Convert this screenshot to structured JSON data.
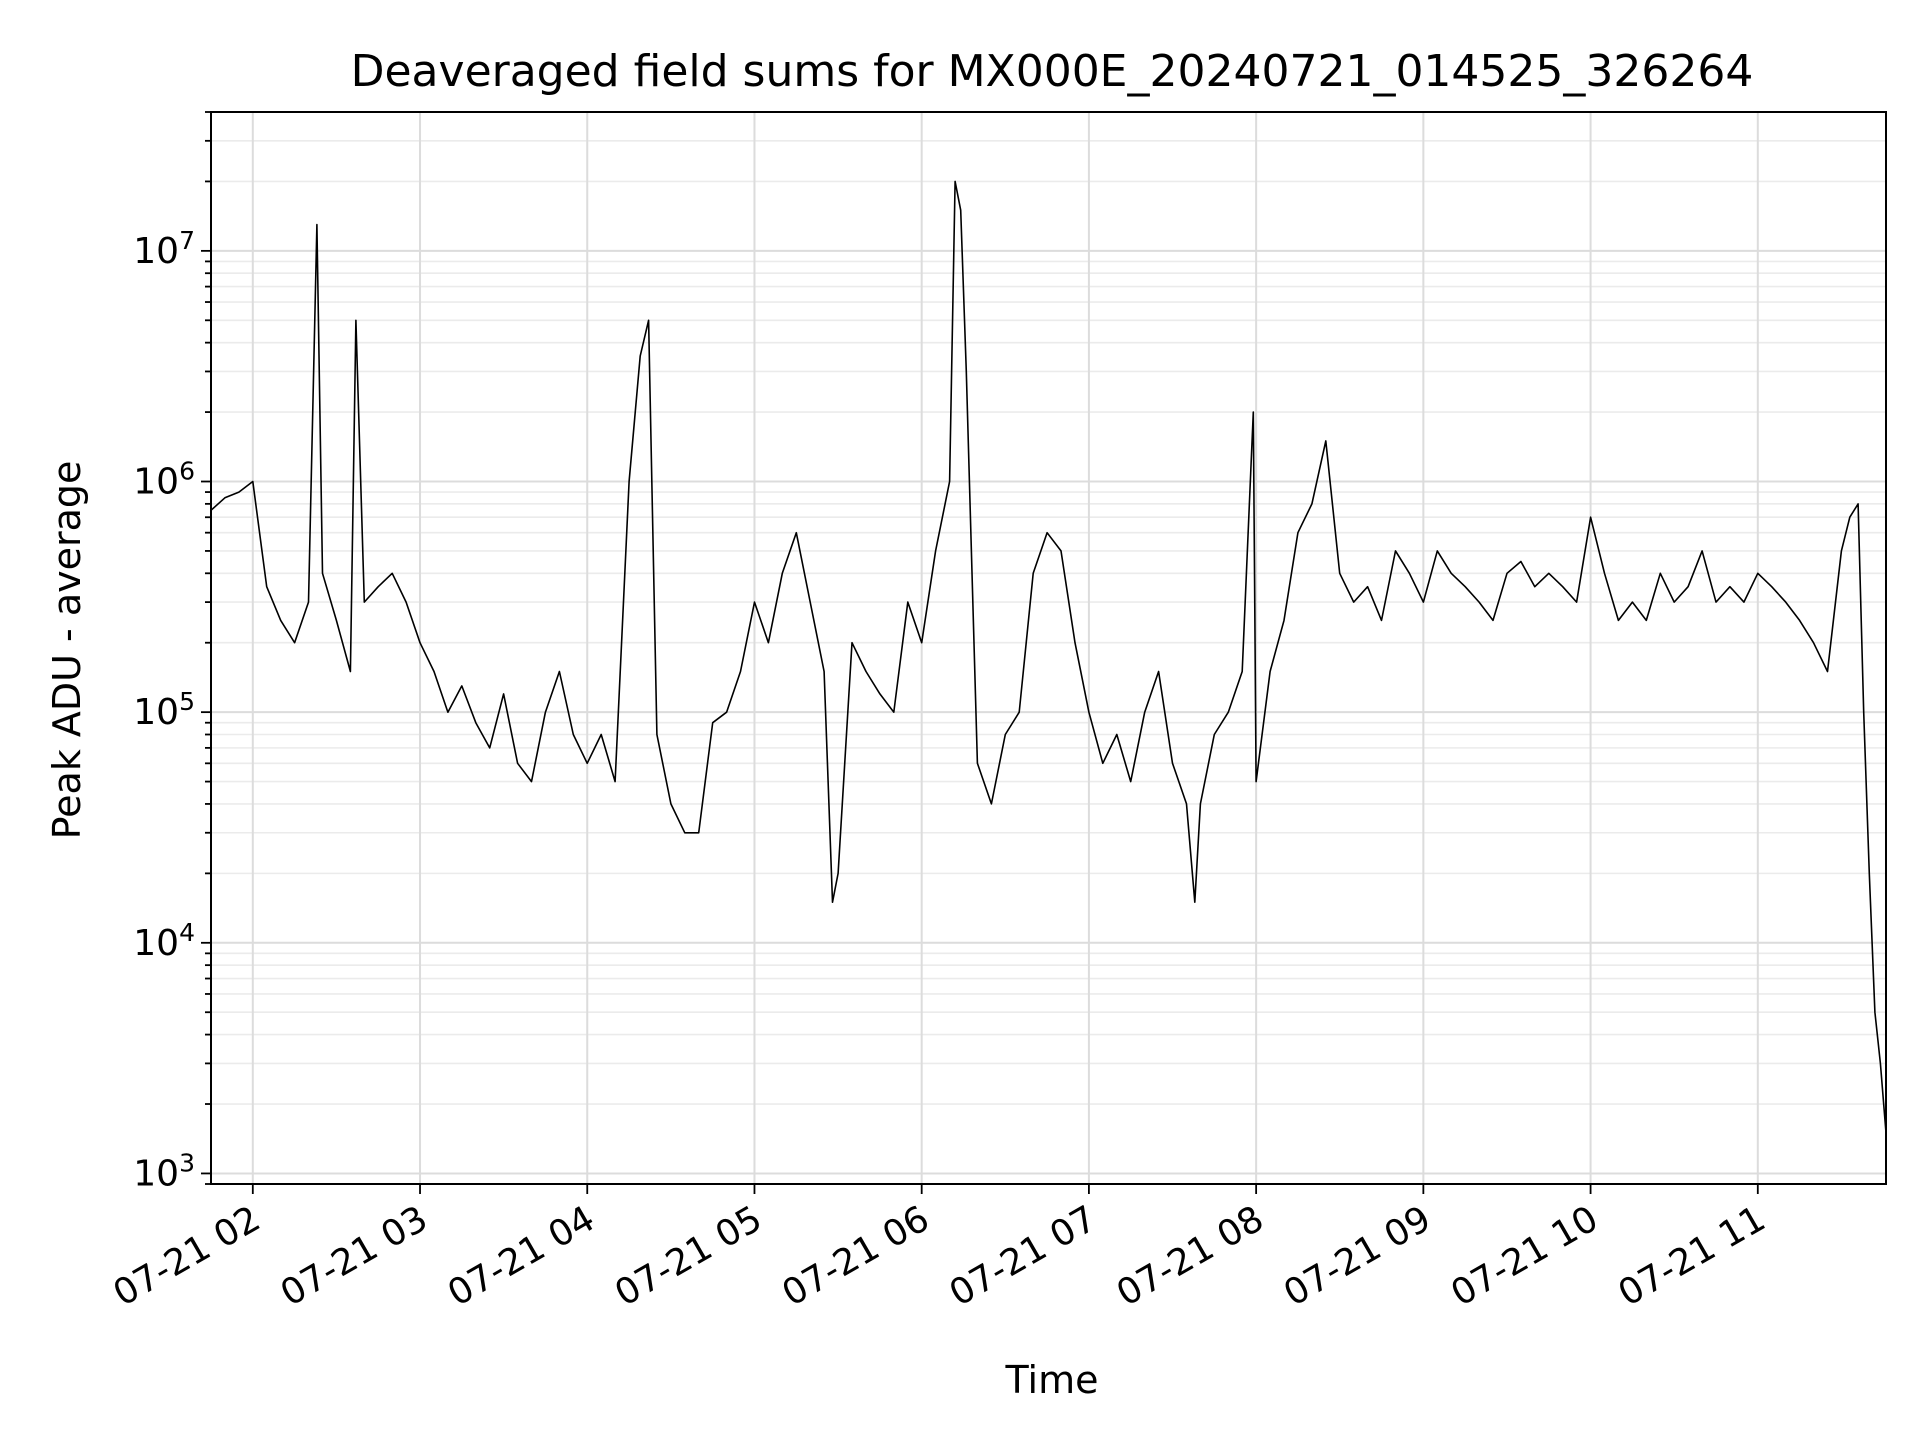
{
  "chart_data": {
    "type": "line",
    "title": "Deaveraged field sums for MX000E_20240721_014525_326264",
    "xlabel": "Time",
    "ylabel": "Peak ADU - average",
    "yscale": "log",
    "ylim": [
      900,
      40000000
    ],
    "xlim": [
      "07-21 01:45",
      "07-21 11:46"
    ],
    "grid": true,
    "x_ticks": [
      "07-21 02",
      "07-21 03",
      "07-21 04",
      "07-21 05",
      "07-21 06",
      "07-21 07",
      "07-21 08",
      "07-21 09",
      "07-21 10",
      "07-21 11"
    ],
    "y_ticks": [
      {
        "value": 1000,
        "base": "10",
        "exp": "3"
      },
      {
        "value": 10000,
        "base": "10",
        "exp": "4"
      },
      {
        "value": 100000,
        "base": "10",
        "exp": "5"
      },
      {
        "value": 1000000,
        "base": "10",
        "exp": "6"
      },
      {
        "value": 10000000,
        "base": "10",
        "exp": "7"
      }
    ],
    "line_color": "#000000",
    "series": [
      {
        "x": [
          "07-21 01:45",
          "07-21 01:50",
          "07-21 01:55",
          "07-21 02:00",
          "07-21 02:05",
          "07-21 02:10",
          "07-21 02:15",
          "07-21 02:20",
          "07-21 02:23",
          "07-21 02:25",
          "07-21 02:30",
          "07-21 02:35",
          "07-21 02:37",
          "07-21 02:40",
          "07-21 02:45",
          "07-21 02:50",
          "07-21 02:55",
          "07-21 03:00",
          "07-21 03:05",
          "07-21 03:10",
          "07-21 03:15",
          "07-21 03:20",
          "07-21 03:25",
          "07-21 03:30",
          "07-21 03:35",
          "07-21 03:40",
          "07-21 03:45",
          "07-21 03:50",
          "07-21 03:55",
          "07-21 04:00",
          "07-21 04:05",
          "07-21 04:10",
          "07-21 04:15",
          "07-21 04:19",
          "07-21 04:22",
          "07-21 04:25",
          "07-21 04:30",
          "07-21 04:35",
          "07-21 04:40",
          "07-21 04:45",
          "07-21 04:50",
          "07-21 04:55",
          "07-21 05:00",
          "07-21 05:05",
          "07-21 05:10",
          "07-21 05:15",
          "07-21 05:20",
          "07-21 05:25",
          "07-21 05:28",
          "07-21 05:30",
          "07-21 05:35",
          "07-21 05:40",
          "07-21 05:45",
          "07-21 05:50",
          "07-21 05:55",
          "07-21 06:00",
          "07-21 06:05",
          "07-21 06:10",
          "07-21 06:12",
          "07-21 06:14",
          "07-21 06:16",
          "07-21 06:20",
          "07-21 06:25",
          "07-21 06:30",
          "07-21 06:35",
          "07-21 06:40",
          "07-21 06:45",
          "07-21 06:50",
          "07-21 06:55",
          "07-21 07:00",
          "07-21 07:05",
          "07-21 07:10",
          "07-21 07:15",
          "07-21 07:20",
          "07-21 07:25",
          "07-21 07:30",
          "07-21 07:35",
          "07-21 07:38",
          "07-21 07:40",
          "07-21 07:45",
          "07-21 07:50",
          "07-21 07:55",
          "07-21 07:59",
          "07-21 08:00",
          "07-21 08:05",
          "07-21 08:10",
          "07-21 08:15",
          "07-21 08:20",
          "07-21 08:25",
          "07-21 08:30",
          "07-21 08:35",
          "07-21 08:40",
          "07-21 08:45",
          "07-21 08:50",
          "07-21 08:55",
          "07-21 09:00",
          "07-21 09:05",
          "07-21 09:10",
          "07-21 09:15",
          "07-21 09:20",
          "07-21 09:25",
          "07-21 09:30",
          "07-21 09:35",
          "07-21 09:40",
          "07-21 09:45",
          "07-21 09:50",
          "07-21 09:55",
          "07-21 10:00",
          "07-21 10:05",
          "07-21 10:10",
          "07-21 10:15",
          "07-21 10:20",
          "07-21 10:25",
          "07-21 10:30",
          "07-21 10:35",
          "07-21 10:40",
          "07-21 10:45",
          "07-21 10:50",
          "07-21 10:55",
          "07-21 11:00",
          "07-21 11:05",
          "07-21 11:10",
          "07-21 11:15",
          "07-21 11:20",
          "07-21 11:25",
          "07-21 11:30",
          "07-21 11:33",
          "07-21 11:36",
          "07-21 11:38",
          "07-21 11:40",
          "07-21 11:42",
          "07-21 11:44",
          "07-21 11:46"
        ],
        "y": [
          750000,
          850000,
          900000,
          1000000,
          350000,
          250000,
          200000,
          300000,
          13000000,
          400000,
          250000,
          150000,
          5000000,
          300000,
          350000,
          400000,
          300000,
          200000,
          150000,
          100000,
          130000,
          90000,
          70000,
          120000,
          60000,
          50000,
          100000,
          150000,
          80000,
          60000,
          80000,
          50000,
          1000000,
          3500000,
          5000000,
          80000,
          40000,
          30000,
          30000,
          90000,
          100000,
          150000,
          300000,
          200000,
          400000,
          600000,
          300000,
          150000,
          15000,
          20000,
          200000,
          150000,
          120000,
          100000,
          300000,
          200000,
          500000,
          1000000,
          20000000,
          15000000,
          3000000,
          60000,
          40000,
          80000,
          100000,
          400000,
          600000,
          500000,
          200000,
          100000,
          60000,
          80000,
          50000,
          100000,
          150000,
          60000,
          40000,
          15000,
          40000,
          80000,
          100000,
          150000,
          2000000,
          50000,
          150000,
          250000,
          600000,
          800000,
          1500000,
          400000,
          300000,
          350000,
          250000,
          500000,
          400000,
          300000,
          500000,
          400000,
          350000,
          300000,
          250000,
          400000,
          450000,
          350000,
          400000,
          350000,
          300000,
          700000,
          400000,
          250000,
          300000,
          250000,
          400000,
          300000,
          350000,
          500000,
          300000,
          350000,
          300000,
          400000,
          350000,
          300000,
          250000,
          200000,
          150000,
          500000,
          700000,
          800000,
          100000,
          20000,
          5000,
          3000,
          1500
        ]
      }
    ]
  }
}
